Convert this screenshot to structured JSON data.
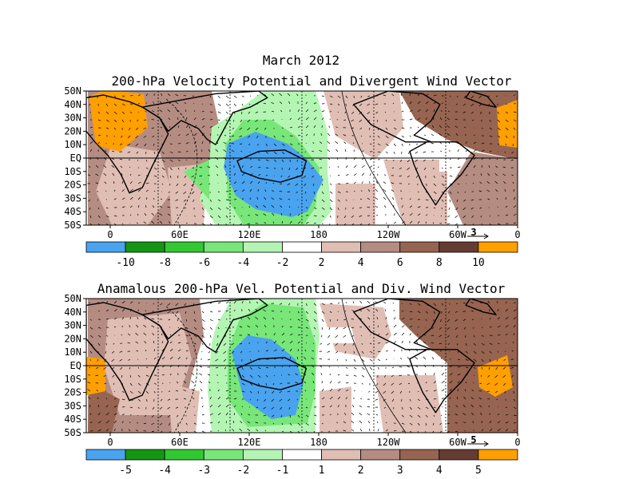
{
  "title_line1": "March 2012",
  "panels": [
    {
      "title": "200-hPa Velocity Potential and Divergent Wind Vector",
      "lat_labels": [
        "50N",
        "40N",
        "30N",
        "20N",
        "10N",
        "EQ",
        "10S",
        "20S",
        "30S",
        "40S",
        "50S"
      ],
      "lon_labels": [
        "0",
        "60E",
        "120E",
        "180",
        "120W",
        "60W",
        "0"
      ],
      "vector_scale_label": "3",
      "colorbar_labels": [
        "-10",
        "-8",
        "-6",
        "-4",
        "-2",
        "2",
        "4",
        "6",
        "8",
        "10"
      ],
      "colorbar_colors": [
        "#4aa3ee",
        "#149614",
        "#32c832",
        "#78e678",
        "#b4f5b4",
        "#ffffff",
        "#e0beb4",
        "#b48c82",
        "#966450",
        "#643c32",
        "#ffa000"
      ]
    },
    {
      "title": "Anamalous 200-hPa Vel. Potential and Div. Wind Vector",
      "lat_labels": [
        "50N",
        "40N",
        "30N",
        "20N",
        "10N",
        "EQ",
        "10S",
        "20S",
        "30S",
        "40S",
        "50S"
      ],
      "lon_labels": [
        "0",
        "60E",
        "120E",
        "180",
        "120W",
        "60W",
        "0"
      ],
      "vector_scale_label": "5",
      "colorbar_labels": [
        "-5",
        "-4",
        "-3",
        "-2",
        "-1",
        "1",
        "2",
        "3",
        "4",
        "5"
      ],
      "colorbar_colors": [
        "#4aa3ee",
        "#149614",
        "#32c832",
        "#78e678",
        "#b4f5b4",
        "#ffffff",
        "#e0beb4",
        "#b48c82",
        "#966450",
        "#643c32",
        "#ffa000"
      ]
    }
  ]
}
